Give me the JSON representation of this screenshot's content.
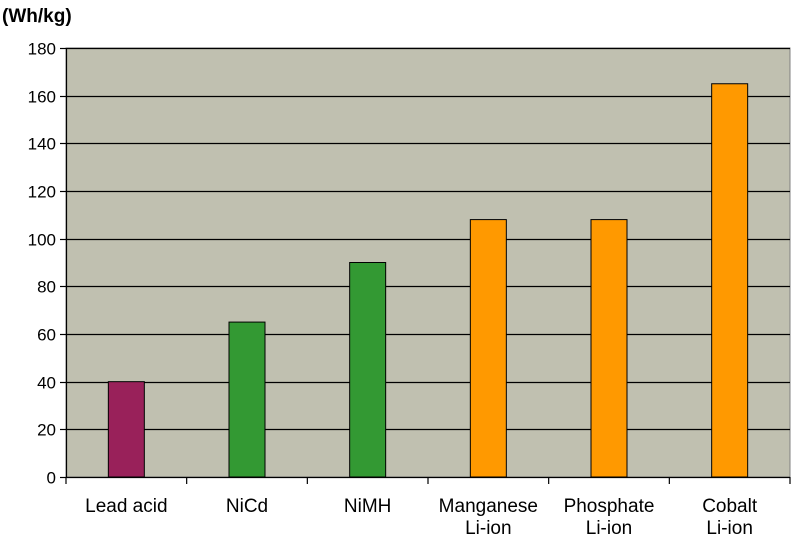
{
  "chart_data": {
    "type": "bar",
    "ylabel": "(Wh/kg)",
    "ylim": [
      0,
      180
    ],
    "yticks": [
      0,
      20,
      40,
      60,
      80,
      100,
      120,
      140,
      160,
      180
    ],
    "grid": true,
    "legend": "none",
    "categories": [
      [
        "Lead acid"
      ],
      [
        "NiCd"
      ],
      [
        "NiMH"
      ],
      [
        "Manganese",
        "Li-ion"
      ],
      [
        "Phosphate",
        "Li-ion"
      ],
      [
        "Cobalt",
        "Li-ion"
      ]
    ],
    "values": [
      40,
      65,
      90,
      108,
      108,
      165
    ],
    "colors": [
      "#99215A",
      "#339933",
      "#339933",
      "#FF9900",
      "#FF9900",
      "#FF9900"
    ],
    "plot_background": "#C0C0B0"
  }
}
